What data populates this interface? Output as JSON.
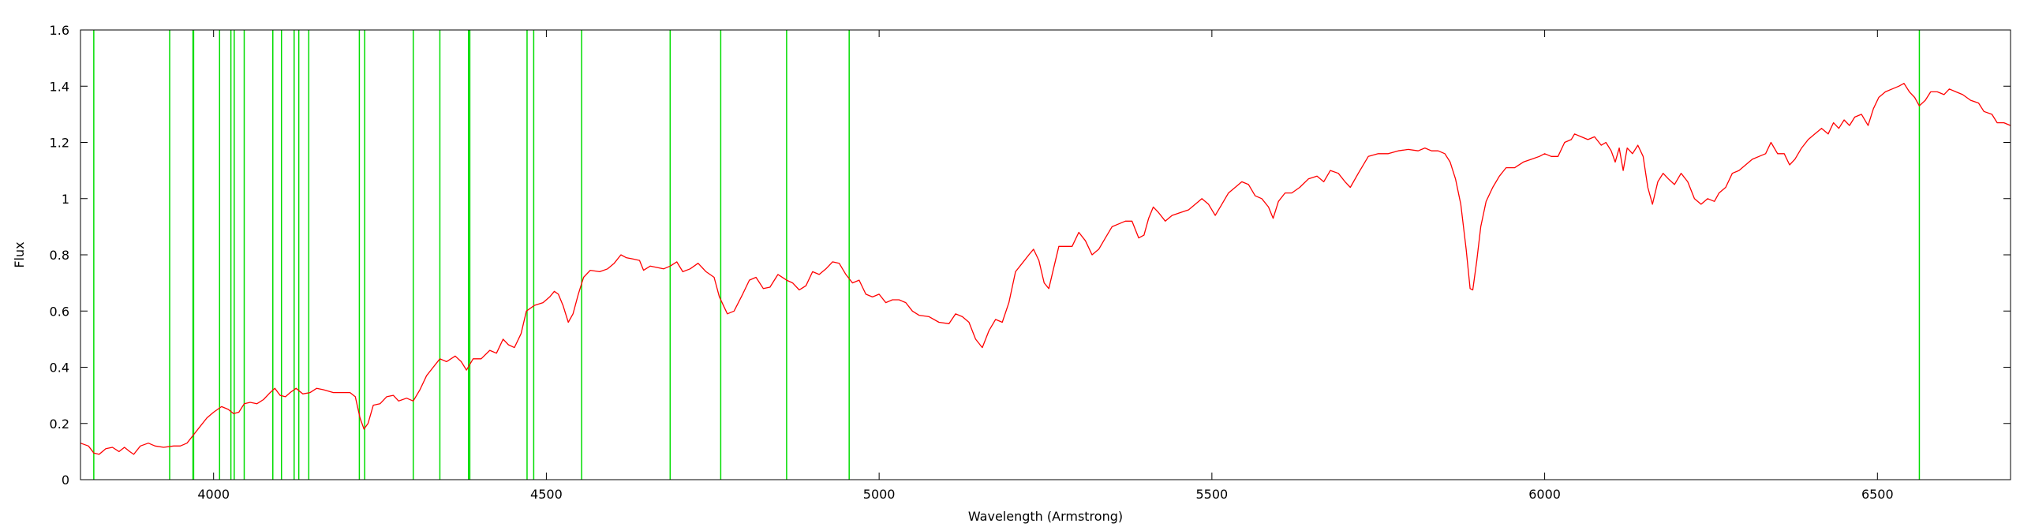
{
  "chart_data": {
    "type": "line",
    "title": "",
    "xlabel": "Wavelength (Armstrong)",
    "ylabel": "Flux",
    "xlim": [
      3800,
      6700
    ],
    "ylim": [
      0,
      1.6
    ],
    "xticks": [
      {
        "value": 4000,
        "label": "4000"
      },
      {
        "value": 4500,
        "label": "4500"
      },
      {
        "value": 5000,
        "label": "5000"
      },
      {
        "value": 5500,
        "label": "5500"
      },
      {
        "value": 6000,
        "label": "6000"
      },
      {
        "value": 6500,
        "label": "6500"
      }
    ],
    "yticks": [
      {
        "value": 0,
        "label": "0"
      },
      {
        "value": 0.2,
        "label": "0.2"
      },
      {
        "value": 0.4,
        "label": "0.4"
      },
      {
        "value": 0.6,
        "label": "0.6"
      },
      {
        "value": 0.8,
        "label": "0.8"
      },
      {
        "value": 1.0,
        "label": "1"
      },
      {
        "value": 1.2,
        "label": "1.2"
      },
      {
        "value": 1.4,
        "label": "1.4"
      },
      {
        "value": 1.6,
        "label": "1.6"
      }
    ],
    "grid": false,
    "series_color": "#ff0000",
    "line_color": "#00dd00",
    "line_wavelengths": [
      3820,
      3934,
      3969,
      3970,
      4009,
      4026,
      4031,
      4046,
      4089,
      4102,
      4121,
      4128,
      4143,
      4219,
      4227,
      4300,
      4340,
      4383,
      4385,
      4471,
      4481,
      4553,
      4686,
      4762,
      4861,
      4955,
      6563
    ],
    "series": [
      {
        "values": [
          [
            3800,
            0.13
          ],
          [
            3812,
            0.12
          ],
          [
            3820,
            0.095
          ],
          [
            3828,
            0.09
          ],
          [
            3838,
            0.11
          ],
          [
            3848,
            0.115
          ],
          [
            3858,
            0.1
          ],
          [
            3866,
            0.115
          ],
          [
            3874,
            0.1
          ],
          [
            3880,
            0.09
          ],
          [
            3890,
            0.12
          ],
          [
            3902,
            0.13
          ],
          [
            3912,
            0.12
          ],
          [
            3925,
            0.115
          ],
          [
            3940,
            0.12
          ],
          [
            3950,
            0.12
          ],
          [
            3960,
            0.13
          ],
          [
            3970,
            0.16
          ],
          [
            3980,
            0.19
          ],
          [
            3990,
            0.22
          ],
          [
            4000,
            0.24
          ],
          [
            4012,
            0.26
          ],
          [
            4022,
            0.25
          ],
          [
            4030,
            0.235
          ],
          [
            4038,
            0.24
          ],
          [
            4046,
            0.27
          ],
          [
            4055,
            0.275
          ],
          [
            4065,
            0.27
          ],
          [
            4075,
            0.285
          ],
          [
            4085,
            0.31
          ],
          [
            4092,
            0.325
          ],
          [
            4100,
            0.3
          ],
          [
            4108,
            0.295
          ],
          [
            4115,
            0.31
          ],
          [
            4124,
            0.325
          ],
          [
            4134,
            0.305
          ],
          [
            4145,
            0.31
          ],
          [
            4155,
            0.325
          ],
          [
            4165,
            0.32
          ],
          [
            4180,
            0.31
          ],
          [
            4195,
            0.31
          ],
          [
            4205,
            0.31
          ],
          [
            4213,
            0.295
          ],
          [
            4220,
            0.22
          ],
          [
            4226,
            0.18
          ],
          [
            4232,
            0.2
          ],
          [
            4240,
            0.265
          ],
          [
            4250,
            0.27
          ],
          [
            4260,
            0.295
          ],
          [
            4270,
            0.3
          ],
          [
            4278,
            0.28
          ],
          [
            4290,
            0.29
          ],
          [
            4300,
            0.28
          ],
          [
            4310,
            0.32
          ],
          [
            4320,
            0.37
          ],
          [
            4330,
            0.4
          ],
          [
            4340,
            0.43
          ],
          [
            4350,
            0.42
          ],
          [
            4363,
            0.44
          ],
          [
            4372,
            0.42
          ],
          [
            4380,
            0.39
          ],
          [
            4390,
            0.43
          ],
          [
            4402,
            0.43
          ],
          [
            4415,
            0.46
          ],
          [
            4425,
            0.45
          ],
          [
            4435,
            0.5
          ],
          [
            4443,
            0.48
          ],
          [
            4452,
            0.47
          ],
          [
            4462,
            0.52
          ],
          [
            4470,
            0.6
          ],
          [
            4482,
            0.62
          ],
          [
            4495,
            0.63
          ],
          [
            4505,
            0.65
          ],
          [
            4512,
            0.67
          ],
          [
            4518,
            0.66
          ],
          [
            4525,
            0.62
          ],
          [
            4533,
            0.56
          ],
          [
            4540,
            0.59
          ],
          [
            4548,
            0.66
          ],
          [
            4556,
            0.72
          ],
          [
            4566,
            0.745
          ],
          [
            4580,
            0.74
          ],
          [
            4592,
            0.75
          ],
          [
            4602,
            0.77
          ],
          [
            4612,
            0.8
          ],
          [
            4620,
            0.79
          ],
          [
            4630,
            0.785
          ],
          [
            4640,
            0.78
          ],
          [
            4646,
            0.745
          ],
          [
            4656,
            0.76
          ],
          [
            4666,
            0.755
          ],
          [
            4676,
            0.75
          ],
          [
            4686,
            0.76
          ],
          [
            4696,
            0.775
          ],
          [
            4705,
            0.74
          ],
          [
            4716,
            0.75
          ],
          [
            4728,
            0.77
          ],
          [
            4740,
            0.74
          ],
          [
            4752,
            0.72
          ],
          [
            4760,
            0.65
          ],
          [
            4772,
            0.59
          ],
          [
            4782,
            0.6
          ],
          [
            4795,
            0.66
          ],
          [
            4805,
            0.71
          ],
          [
            4815,
            0.72
          ],
          [
            4826,
            0.68
          ],
          [
            4836,
            0.685
          ],
          [
            4848,
            0.73
          ],
          [
            4861,
            0.71
          ],
          [
            4870,
            0.7
          ],
          [
            4880,
            0.675
          ],
          [
            4890,
            0.69
          ],
          [
            4900,
            0.74
          ],
          [
            4910,
            0.73
          ],
          [
            4920,
            0.75
          ],
          [
            4930,
            0.775
          ],
          [
            4940,
            0.77
          ],
          [
            4950,
            0.73
          ],
          [
            4960,
            0.7
          ],
          [
            4970,
            0.71
          ],
          [
            4980,
            0.66
          ],
          [
            4990,
            0.65
          ],
          [
            5000,
            0.66
          ],
          [
            5010,
            0.63
          ],
          [
            5020,
            0.64
          ],
          [
            5030,
            0.64
          ],
          [
            5040,
            0.63
          ],
          [
            5050,
            0.6
          ],
          [
            5060,
            0.585
          ],
          [
            5075,
            0.58
          ],
          [
            5090,
            0.56
          ],
          [
            5105,
            0.555
          ],
          [
            5115,
            0.59
          ],
          [
            5125,
            0.58
          ],
          [
            5135,
            0.56
          ],
          [
            5145,
            0.5
          ],
          [
            5155,
            0.47
          ],
          [
            5165,
            0.53
          ],
          [
            5175,
            0.57
          ],
          [
            5185,
            0.56
          ],
          [
            5195,
            0.63
          ],
          [
            5205,
            0.74
          ],
          [
            5215,
            0.77
          ],
          [
            5225,
            0.8
          ],
          [
            5232,
            0.82
          ],
          [
            5240,
            0.78
          ],
          [
            5248,
            0.7
          ],
          [
            5255,
            0.68
          ],
          [
            5262,
            0.75
          ],
          [
            5270,
            0.83
          ],
          [
            5280,
            0.83
          ],
          [
            5290,
            0.83
          ],
          [
            5300,
            0.88
          ],
          [
            5310,
            0.85
          ],
          [
            5320,
            0.8
          ],
          [
            5330,
            0.82
          ],
          [
            5340,
            0.86
          ],
          [
            5350,
            0.9
          ],
          [
            5360,
            0.91
          ],
          [
            5370,
            0.92
          ],
          [
            5380,
            0.92
          ],
          [
            5390,
            0.86
          ],
          [
            5398,
            0.87
          ],
          [
            5405,
            0.93
          ],
          [
            5412,
            0.97
          ],
          [
            5420,
            0.95
          ],
          [
            5430,
            0.92
          ],
          [
            5440,
            0.94
          ],
          [
            5452,
            0.95
          ],
          [
            5465,
            0.96
          ],
          [
            5475,
            0.98
          ],
          [
            5485,
            1.0
          ],
          [
            5495,
            0.98
          ],
          [
            5505,
            0.94
          ],
          [
            5515,
            0.98
          ],
          [
            5525,
            1.02
          ],
          [
            5535,
            1.04
          ],
          [
            5545,
            1.06
          ],
          [
            5555,
            1.05
          ],
          [
            5565,
            1.01
          ],
          [
            5575,
            1.0
          ],
          [
            5585,
            0.97
          ],
          [
            5592,
            0.93
          ],
          [
            5600,
            0.99
          ],
          [
            5610,
            1.02
          ],
          [
            5620,
            1.02
          ],
          [
            5632,
            1.04
          ],
          [
            5645,
            1.07
          ],
          [
            5658,
            1.08
          ],
          [
            5668,
            1.06
          ],
          [
            5678,
            1.1
          ],
          [
            5690,
            1.09
          ],
          [
            5700,
            1.06
          ],
          [
            5708,
            1.04
          ],
          [
            5720,
            1.09
          ],
          [
            5735,
            1.15
          ],
          [
            5750,
            1.16
          ],
          [
            5765,
            1.16
          ],
          [
            5780,
            1.17
          ],
          [
            5795,
            1.175
          ],
          [
            5810,
            1.17
          ],
          [
            5820,
            1.18
          ],
          [
            5830,
            1.17
          ],
          [
            5840,
            1.17
          ],
          [
            5850,
            1.16
          ],
          [
            5858,
            1.13
          ],
          [
            5866,
            1.07
          ],
          [
            5874,
            0.98
          ],
          [
            5882,
            0.82
          ],
          [
            5888,
            0.68
          ],
          [
            5892,
            0.675
          ],
          [
            5898,
            0.78
          ],
          [
            5904,
            0.9
          ],
          [
            5912,
            0.99
          ],
          [
            5922,
            1.04
          ],
          [
            5932,
            1.08
          ],
          [
            5942,
            1.11
          ],
          [
            5955,
            1.11
          ],
          [
            5968,
            1.13
          ],
          [
            5980,
            1.14
          ],
          [
            5992,
            1.15
          ],
          [
            6000,
            1.16
          ],
          [
            6010,
            1.15
          ],
          [
            6020,
            1.15
          ],
          [
            6030,
            1.2
          ],
          [
            6040,
            1.21
          ],
          [
            6045,
            1.23
          ],
          [
            6055,
            1.22
          ],
          [
            6065,
            1.21
          ],
          [
            6075,
            1.22
          ],
          [
            6085,
            1.19
          ],
          [
            6092,
            1.2
          ],
          [
            6100,
            1.17
          ],
          [
            6106,
            1.13
          ],
          [
            6112,
            1.18
          ],
          [
            6118,
            1.1
          ],
          [
            6124,
            1.18
          ],
          [
            6132,
            1.16
          ],
          [
            6140,
            1.19
          ],
          [
            6148,
            1.15
          ],
          [
            6155,
            1.04
          ],
          [
            6162,
            0.98
          ],
          [
            6170,
            1.06
          ],
          [
            6178,
            1.09
          ],
          [
            6186,
            1.07
          ],
          [
            6195,
            1.05
          ],
          [
            6205,
            1.09
          ],
          [
            6215,
            1.06
          ],
          [
            6225,
            1.0
          ],
          [
            6235,
            0.98
          ],
          [
            6245,
            1.0
          ],
          [
            6255,
            0.99
          ],
          [
            6262,
            1.02
          ],
          [
            6272,
            1.04
          ],
          [
            6282,
            1.09
          ],
          [
            6292,
            1.1
          ],
          [
            6302,
            1.12
          ],
          [
            6312,
            1.14
          ],
          [
            6322,
            1.15
          ],
          [
            6332,
            1.16
          ],
          [
            6340,
            1.2
          ],
          [
            6350,
            1.16
          ],
          [
            6360,
            1.16
          ],
          [
            6368,
            1.12
          ],
          [
            6376,
            1.14
          ],
          [
            6386,
            1.18
          ],
          [
            6396,
            1.21
          ],
          [
            6406,
            1.23
          ],
          [
            6416,
            1.25
          ],
          [
            6426,
            1.23
          ],
          [
            6434,
            1.27
          ],
          [
            6442,
            1.25
          ],
          [
            6450,
            1.28
          ],
          [
            6458,
            1.26
          ],
          [
            6466,
            1.29
          ],
          [
            6476,
            1.3
          ],
          [
            6486,
            1.26
          ],
          [
            6494,
            1.32
          ],
          [
            6502,
            1.36
          ],
          [
            6512,
            1.38
          ],
          [
            6522,
            1.39
          ],
          [
            6532,
            1.4
          ],
          [
            6540,
            1.41
          ],
          [
            6548,
            1.38
          ],
          [
            6556,
            1.36
          ],
          [
            6563,
            1.33
          ],
          [
            6572,
            1.35
          ],
          [
            6580,
            1.38
          ],
          [
            6590,
            1.38
          ],
          [
            6600,
            1.37
          ],
          [
            6608,
            1.39
          ],
          [
            6618,
            1.38
          ],
          [
            6628,
            1.37
          ],
          [
            6640,
            1.35
          ],
          [
            6652,
            1.34
          ],
          [
            6660,
            1.31
          ],
          [
            6672,
            1.3
          ],
          [
            6680,
            1.27
          ],
          [
            6690,
            1.27
          ],
          [
            6700,
            1.26
          ]
        ]
      }
    ]
  }
}
